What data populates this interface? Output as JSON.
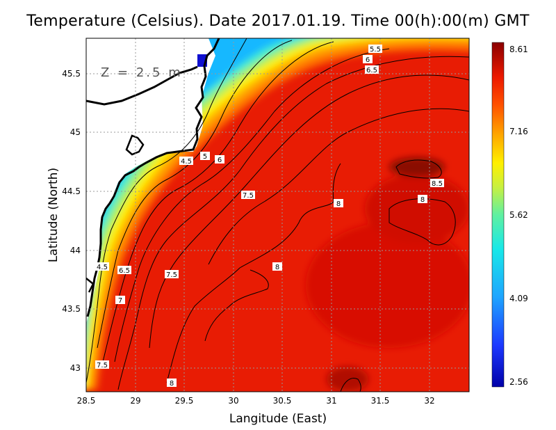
{
  "title": "Temperature (Celsius). Date 2017.01.19. Time 00(h):00(m)  GMT",
  "depth_label": "Z = 2.5 m",
  "xlabel": "Langitude (East)",
  "ylabel": "Latitude (North)",
  "chart_data": {
    "type": "heatmap",
    "variable": "Temperature (Celsius)",
    "date": "2017.01.19",
    "time": "00(h):00(m) GMT",
    "depth": "Z = 2.5 m",
    "xlim": [
      28.5,
      32.4
    ],
    "ylim": [
      42.8,
      45.8
    ],
    "x_ticks": [
      {
        "value": 28.5,
        "label": "28.5"
      },
      {
        "value": 29,
        "label": "29"
      },
      {
        "value": 29.5,
        "label": "29.5"
      },
      {
        "value": 30,
        "label": "30"
      },
      {
        "value": 30.5,
        "label": "30.5"
      },
      {
        "value": 31,
        "label": "31"
      },
      {
        "value": 31.5,
        "label": "31.5"
      },
      {
        "value": 32,
        "label": "32"
      }
    ],
    "y_ticks": [
      {
        "value": 43,
        "label": "43"
      },
      {
        "value": 43.5,
        "label": "43.5"
      },
      {
        "value": 44,
        "label": "44"
      },
      {
        "value": 44.5,
        "label": "44.5"
      },
      {
        "value": 45,
        "label": "45"
      },
      {
        "value": 45.5,
        "label": "45.5"
      }
    ],
    "grid": true,
    "colorbar": {
      "min": 2.56,
      "max": 8.61,
      "labels": [
        {
          "value": 8.61,
          "label": "8.61"
        },
        {
          "value": 7.16,
          "label": "7.16"
        },
        {
          "value": 5.62,
          "label": "5.62"
        },
        {
          "value": 4.09,
          "label": "4.09"
        },
        {
          "value": 2.56,
          "label": "2.56"
        }
      ]
    },
    "contour_labels": [
      {
        "label": "5.5",
        "lon": 31.9,
        "lat": 45.72
      },
      {
        "label": "6",
        "lon": 31.85,
        "lat": 45.62
      },
      {
        "label": "6.5",
        "lon": 31.85,
        "lat": 45.55
      },
      {
        "label": "4.5",
        "lon": 29.42,
        "lat": 44.77
      },
      {
        "label": "5",
        "lon": 29.7,
        "lat": 44.8
      },
      {
        "label": "6",
        "lon": 29.85,
        "lat": 44.77
      },
      {
        "label": "7.5",
        "lon": 30.1,
        "lat": 44.53
      },
      {
        "label": "8",
        "lon": 31.07,
        "lat": 44.42
      },
      {
        "label": "8.5",
        "lon": 32.05,
        "lat": 44.58
      },
      {
        "label": "8",
        "lon": 31.95,
        "lat": 44.45
      },
      {
        "label": "4.5",
        "lon": 28.63,
        "lat": 43.86
      },
      {
        "label": "6.5",
        "lon": 28.88,
        "lat": 43.81
      },
      {
        "label": "7.5",
        "lon": 29.4,
        "lat": 43.78
      },
      {
        "label": "8",
        "lon": 30.44,
        "lat": 43.87
      },
      {
        "label": "7",
        "lon": 28.8,
        "lat": 43.58
      },
      {
        "label": "7.5",
        "lon": 28.67,
        "lat": 43.02
      },
      {
        "label": "8",
        "lon": 29.35,
        "lat": 42.89
      }
    ]
  }
}
